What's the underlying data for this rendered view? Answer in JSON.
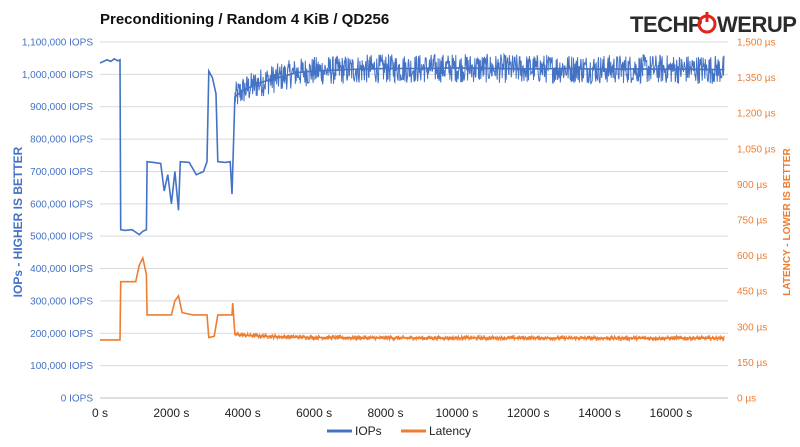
{
  "brand": {
    "logo_left": "TECHP",
    "logo_right": "WERUP",
    "accent": "#e1251b"
  },
  "colors": {
    "iops": "#4472c4",
    "latency": "#ed7d31",
    "grid": "#d9d9d9"
  },
  "chart_data": {
    "type": "line",
    "title": "Preconditioning / Random 4 KiB / QD256",
    "xlabel": "",
    "ylabel": "IOPs - HIGHER IS BETTER",
    "y2label": "LATENCY - LOWER IS BETTER",
    "xlim": [
      0,
      17600
    ],
    "ylim": [
      0,
      1100000
    ],
    "y2lim": [
      0,
      1500
    ],
    "x_ticks": [
      {
        "v": 0,
        "label": "0 s"
      },
      {
        "v": 2000,
        "label": "2000 s"
      },
      {
        "v": 4000,
        "label": "4000 s"
      },
      {
        "v": 6000,
        "label": "6000 s"
      },
      {
        "v": 8000,
        "label": "8000 s"
      },
      {
        "v": 10000,
        "label": "10000 s"
      },
      {
        "v": 12000,
        "label": "12000 s"
      },
      {
        "v": 14000,
        "label": "14000 s"
      },
      {
        "v": 16000,
        "label": "16000 s"
      }
    ],
    "y_ticks": [
      {
        "v": 0,
        "label": "0 IOPS"
      },
      {
        "v": 100000,
        "label": "100,000 IOPS"
      },
      {
        "v": 200000,
        "label": "200,000 IOPS"
      },
      {
        "v": 300000,
        "label": "300,000 IOPS"
      },
      {
        "v": 400000,
        "label": "400,000 IOPS"
      },
      {
        "v": 500000,
        "label": "500,000 IOPS"
      },
      {
        "v": 600000,
        "label": "600,000 IOPS"
      },
      {
        "v": 700000,
        "label": "700,000 IOPS"
      },
      {
        "v": 800000,
        "label": "800,000 IOPS"
      },
      {
        "v": 900000,
        "label": "900,000 IOPS"
      },
      {
        "v": 1000000,
        "label": "1,000,000 IOPS"
      },
      {
        "v": 1100000,
        "label": "1,100,000 IOPS"
      }
    ],
    "y2_ticks": [
      {
        "v": 0,
        "label": "0 µs"
      },
      {
        "v": 150,
        "label": "150 µs"
      },
      {
        "v": 300,
        "label": "300 µs"
      },
      {
        "v": 450,
        "label": "450 µs"
      },
      {
        "v": 600,
        "label": "600 µs"
      },
      {
        "v": 750,
        "label": "750 µs"
      },
      {
        "v": 900,
        "label": "900 µs"
      },
      {
        "v": 1050,
        "label": "1,050 µs"
      },
      {
        "v": 1200,
        "label": "1,200 µs"
      },
      {
        "v": 1350,
        "label": "1,350 µs"
      },
      {
        "v": 1500,
        "label": "1,500 µs"
      }
    ],
    "legend_position": "bottom",
    "grid": true,
    "series": [
      {
        "name": "IOPs",
        "axis": "left",
        "points": [
          [
            0,
            1035000
          ],
          [
            100,
            1040000
          ],
          [
            200,
            1045000
          ],
          [
            300,
            1040000
          ],
          [
            400,
            1048000
          ],
          [
            500,
            1042000
          ],
          [
            560,
            1045000
          ],
          [
            580,
            520000
          ],
          [
            700,
            518000
          ],
          [
            900,
            520000
          ],
          [
            1100,
            505000
          ],
          [
            1200,
            515000
          ],
          [
            1300,
            520000
          ],
          [
            1320,
            730000
          ],
          [
            1500,
            728000
          ],
          [
            1700,
            725000
          ],
          [
            1800,
            640000
          ],
          [
            1900,
            690000
          ],
          [
            2000,
            600000
          ],
          [
            2100,
            700000
          ],
          [
            2200,
            580000
          ],
          [
            2250,
            730000
          ],
          [
            2500,
            728000
          ],
          [
            2700,
            690000
          ],
          [
            2900,
            700000
          ],
          [
            3000,
            730000
          ],
          [
            3050,
            1010000
          ],
          [
            3150,
            990000
          ],
          [
            3250,
            940000
          ],
          [
            3300,
            730000
          ],
          [
            3500,
            728000
          ],
          [
            3650,
            730000
          ],
          [
            3700,
            630000
          ],
          [
            3780,
            930000
          ],
          [
            4000,
            950000
          ],
          [
            4500,
            975000
          ],
          [
            5000,
            990000
          ],
          [
            5500,
            1005000
          ],
          [
            6000,
            1010000
          ],
          [
            7000,
            1015000
          ],
          [
            8000,
            1018000
          ],
          [
            9000,
            1018000
          ],
          [
            10000,
            1020000
          ],
          [
            11000,
            1018000
          ],
          [
            12000,
            1017000
          ],
          [
            13000,
            1018000
          ],
          [
            14000,
            1016000
          ],
          [
            15000,
            1017000
          ],
          [
            16000,
            1016000
          ],
          [
            17000,
            1015000
          ],
          [
            17500,
            1015000
          ]
        ],
        "noise_band": [
          [
            3780,
            17500,
            45000
          ]
        ]
      },
      {
        "name": "Latency",
        "axis": "right",
        "points": [
          [
            0,
            245
          ],
          [
            100,
            245
          ],
          [
            300,
            245
          ],
          [
            500,
            245
          ],
          [
            560,
            245
          ],
          [
            580,
            490
          ],
          [
            800,
            490
          ],
          [
            1000,
            490
          ],
          [
            1100,
            560
          ],
          [
            1200,
            590
          ],
          [
            1300,
            520
          ],
          [
            1320,
            350
          ],
          [
            1500,
            350
          ],
          [
            1800,
            350
          ],
          [
            2000,
            350
          ],
          [
            2100,
            410
          ],
          [
            2200,
            430
          ],
          [
            2300,
            360
          ],
          [
            2600,
            350
          ],
          [
            3000,
            350
          ],
          [
            3050,
            255
          ],
          [
            3200,
            260
          ],
          [
            3300,
            350
          ],
          [
            3500,
            350
          ],
          [
            3700,
            350
          ],
          [
            3720,
            400
          ],
          [
            3780,
            268
          ],
          [
            4000,
            265
          ],
          [
            5000,
            258
          ],
          [
            6000,
            255
          ],
          [
            8000,
            253
          ],
          [
            10000,
            253
          ],
          [
            12000,
            253
          ],
          [
            14000,
            252
          ],
          [
            16000,
            252
          ],
          [
            17500,
            252
          ]
        ],
        "noise_band": [
          [
            3780,
            17500,
            10
          ]
        ]
      }
    ]
  }
}
